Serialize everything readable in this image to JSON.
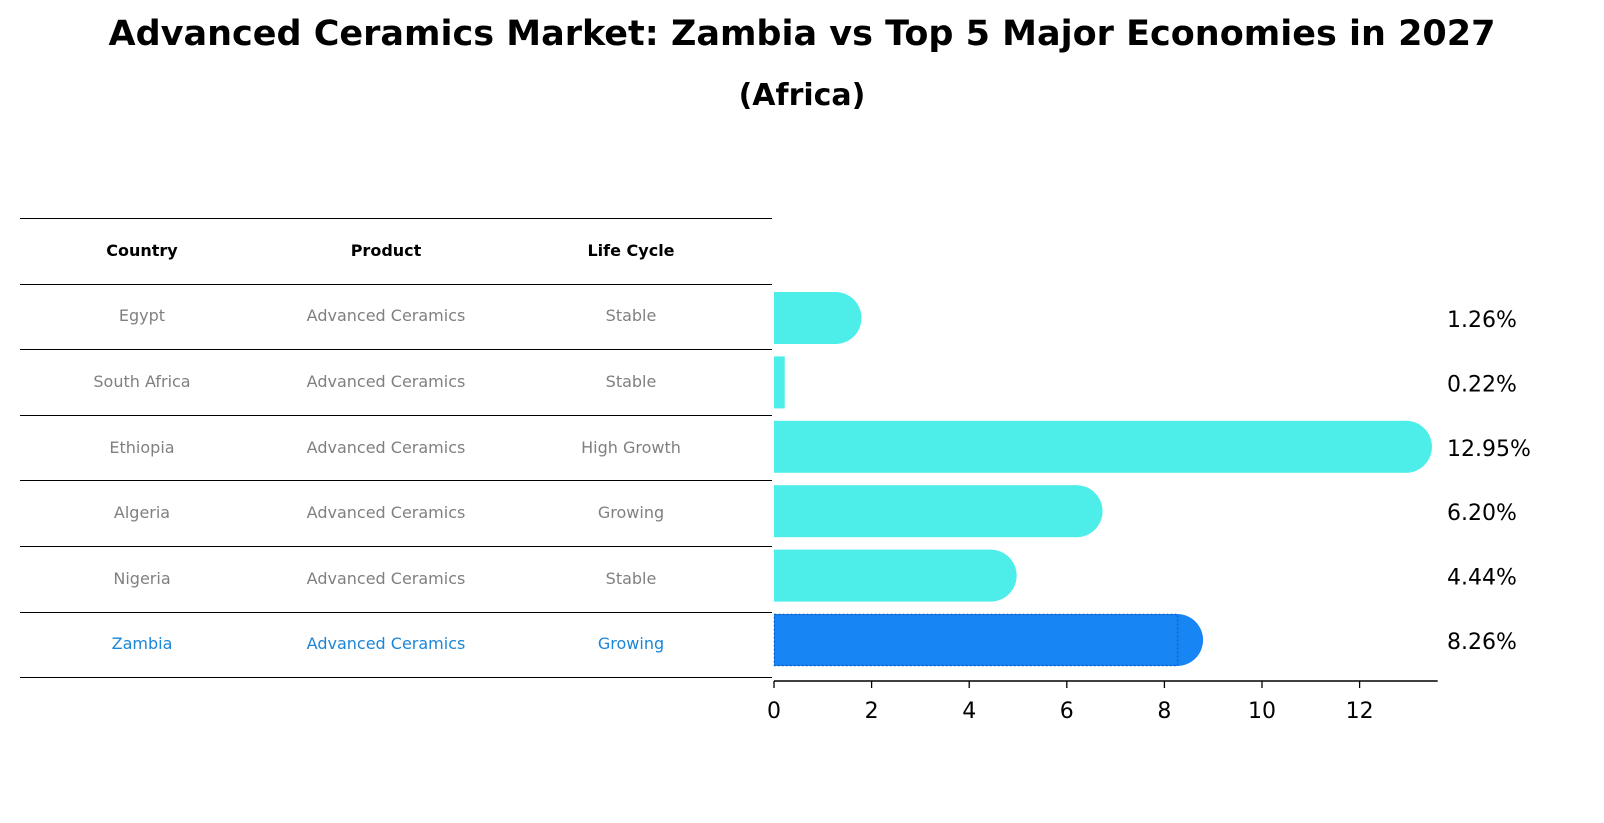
{
  "title": "Advanced Ceramics Market: Zambia vs Top 5 Major Economies in 2027",
  "subtitle": "(Africa)",
  "colors": {
    "bar": "#4deeea",
    "highlight": "#1885f4",
    "highlight_text": "#1a86d8",
    "muted_text": "#808080"
  },
  "table": {
    "headers": [
      "Country",
      "Product",
      "Life Cycle"
    ],
    "rows": [
      [
        "Egypt",
        "Advanced Ceramics",
        "Stable"
      ],
      [
        "South Africa",
        "Advanced Ceramics",
        "Stable"
      ],
      [
        "Ethiopia",
        "Advanced Ceramics",
        "High Growth"
      ],
      [
        "Algeria",
        "Advanced Ceramics",
        "Growing"
      ],
      [
        "Nigeria",
        "Advanced Ceramics",
        "Stable"
      ],
      [
        "Zambia",
        "Advanced Ceramics",
        "Growing"
      ]
    ],
    "highlight_row": 5
  },
  "chart_data": {
    "type": "bar",
    "orientation": "horizontal",
    "categories": [
      "Egypt",
      "South Africa",
      "Ethiopia",
      "Algeria",
      "Nigeria",
      "Zambia"
    ],
    "values": [
      1.26,
      0.22,
      12.95,
      6.2,
      4.44,
      8.26
    ],
    "labels": [
      "1.26%",
      "0.22%",
      "12.95%",
      "6.20%",
      "4.44%",
      "8.26%"
    ],
    "highlight": "Zambia",
    "xticks": [
      0,
      2,
      4,
      6,
      8,
      10,
      12
    ],
    "xlim": [
      0,
      13.6
    ],
    "grid": false
  }
}
